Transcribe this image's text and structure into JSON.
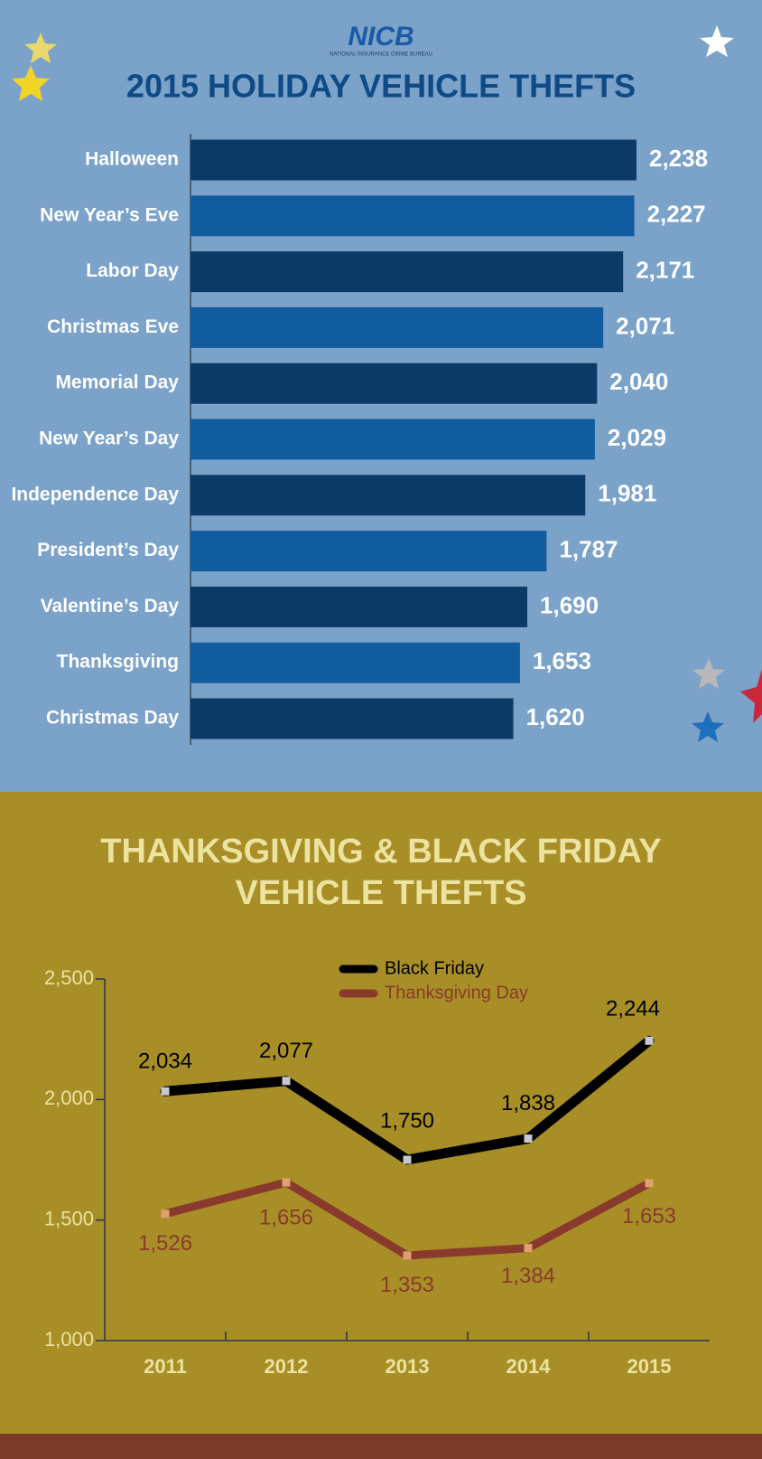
{
  "logo": {
    "text": "NICB",
    "subtitle": "NATIONAL INSURANCE CRIME BUREAU"
  },
  "chart_data": [
    {
      "type": "hbar",
      "title": "2015 HOLIDAY VEHICLE THEFTS",
      "categories": [
        "Halloween",
        "New Year’s Eve",
        "Labor Day",
        "Christmas Eve",
        "Memorial Day",
        "New Year’s Day",
        "Independence Day",
        "President’s Day",
        "Valentine’s Day",
        "Thanksgiving",
        "Christmas Day"
      ],
      "values": [
        2238,
        2227,
        2171,
        2071,
        2040,
        2029,
        1981,
        1787,
        1690,
        1653,
        1620
      ],
      "value_labels": [
        "2,238",
        "2,227",
        "2,171",
        "2,071",
        "2,040",
        "2,029",
        "1,981",
        "1,787",
        "1,690",
        "1,653",
        "1,620"
      ],
      "colors": [
        "#0b3a66",
        "#115c9e"
      ]
    },
    {
      "type": "line",
      "title": [
        "THANKSGIVING & BLACK FRIDAY",
        "VEHICLE THEFTS"
      ],
      "categories": [
        "2011",
        "2012",
        "2013",
        "2014",
        "2015"
      ],
      "series": [
        {
          "name": "Black Friday",
          "color": "#000000",
          "values": [
            2034,
            2077,
            1750,
            1838,
            2244
          ],
          "value_labels": [
            "2,034",
            "2,077",
            "1,750",
            "1,838",
            "2,244"
          ]
        },
        {
          "name": "Thanksgiving Day",
          "color": "#8a3a2c",
          "values": [
            1526,
            1656,
            1353,
            1384,
            1653
          ],
          "value_labels": [
            "1,526",
            "1,656",
            "1,353",
            "1,384",
            "1,653"
          ]
        }
      ],
      "ylim": [
        1000,
        2500
      ],
      "yticks": [
        {
          "value": 1000,
          "label": "1,000"
        },
        {
          "value": 1500,
          "label": "1,500"
        },
        {
          "value": 2000,
          "label": "2,000"
        },
        {
          "value": 2500,
          "label": "2,500"
        }
      ]
    }
  ]
}
